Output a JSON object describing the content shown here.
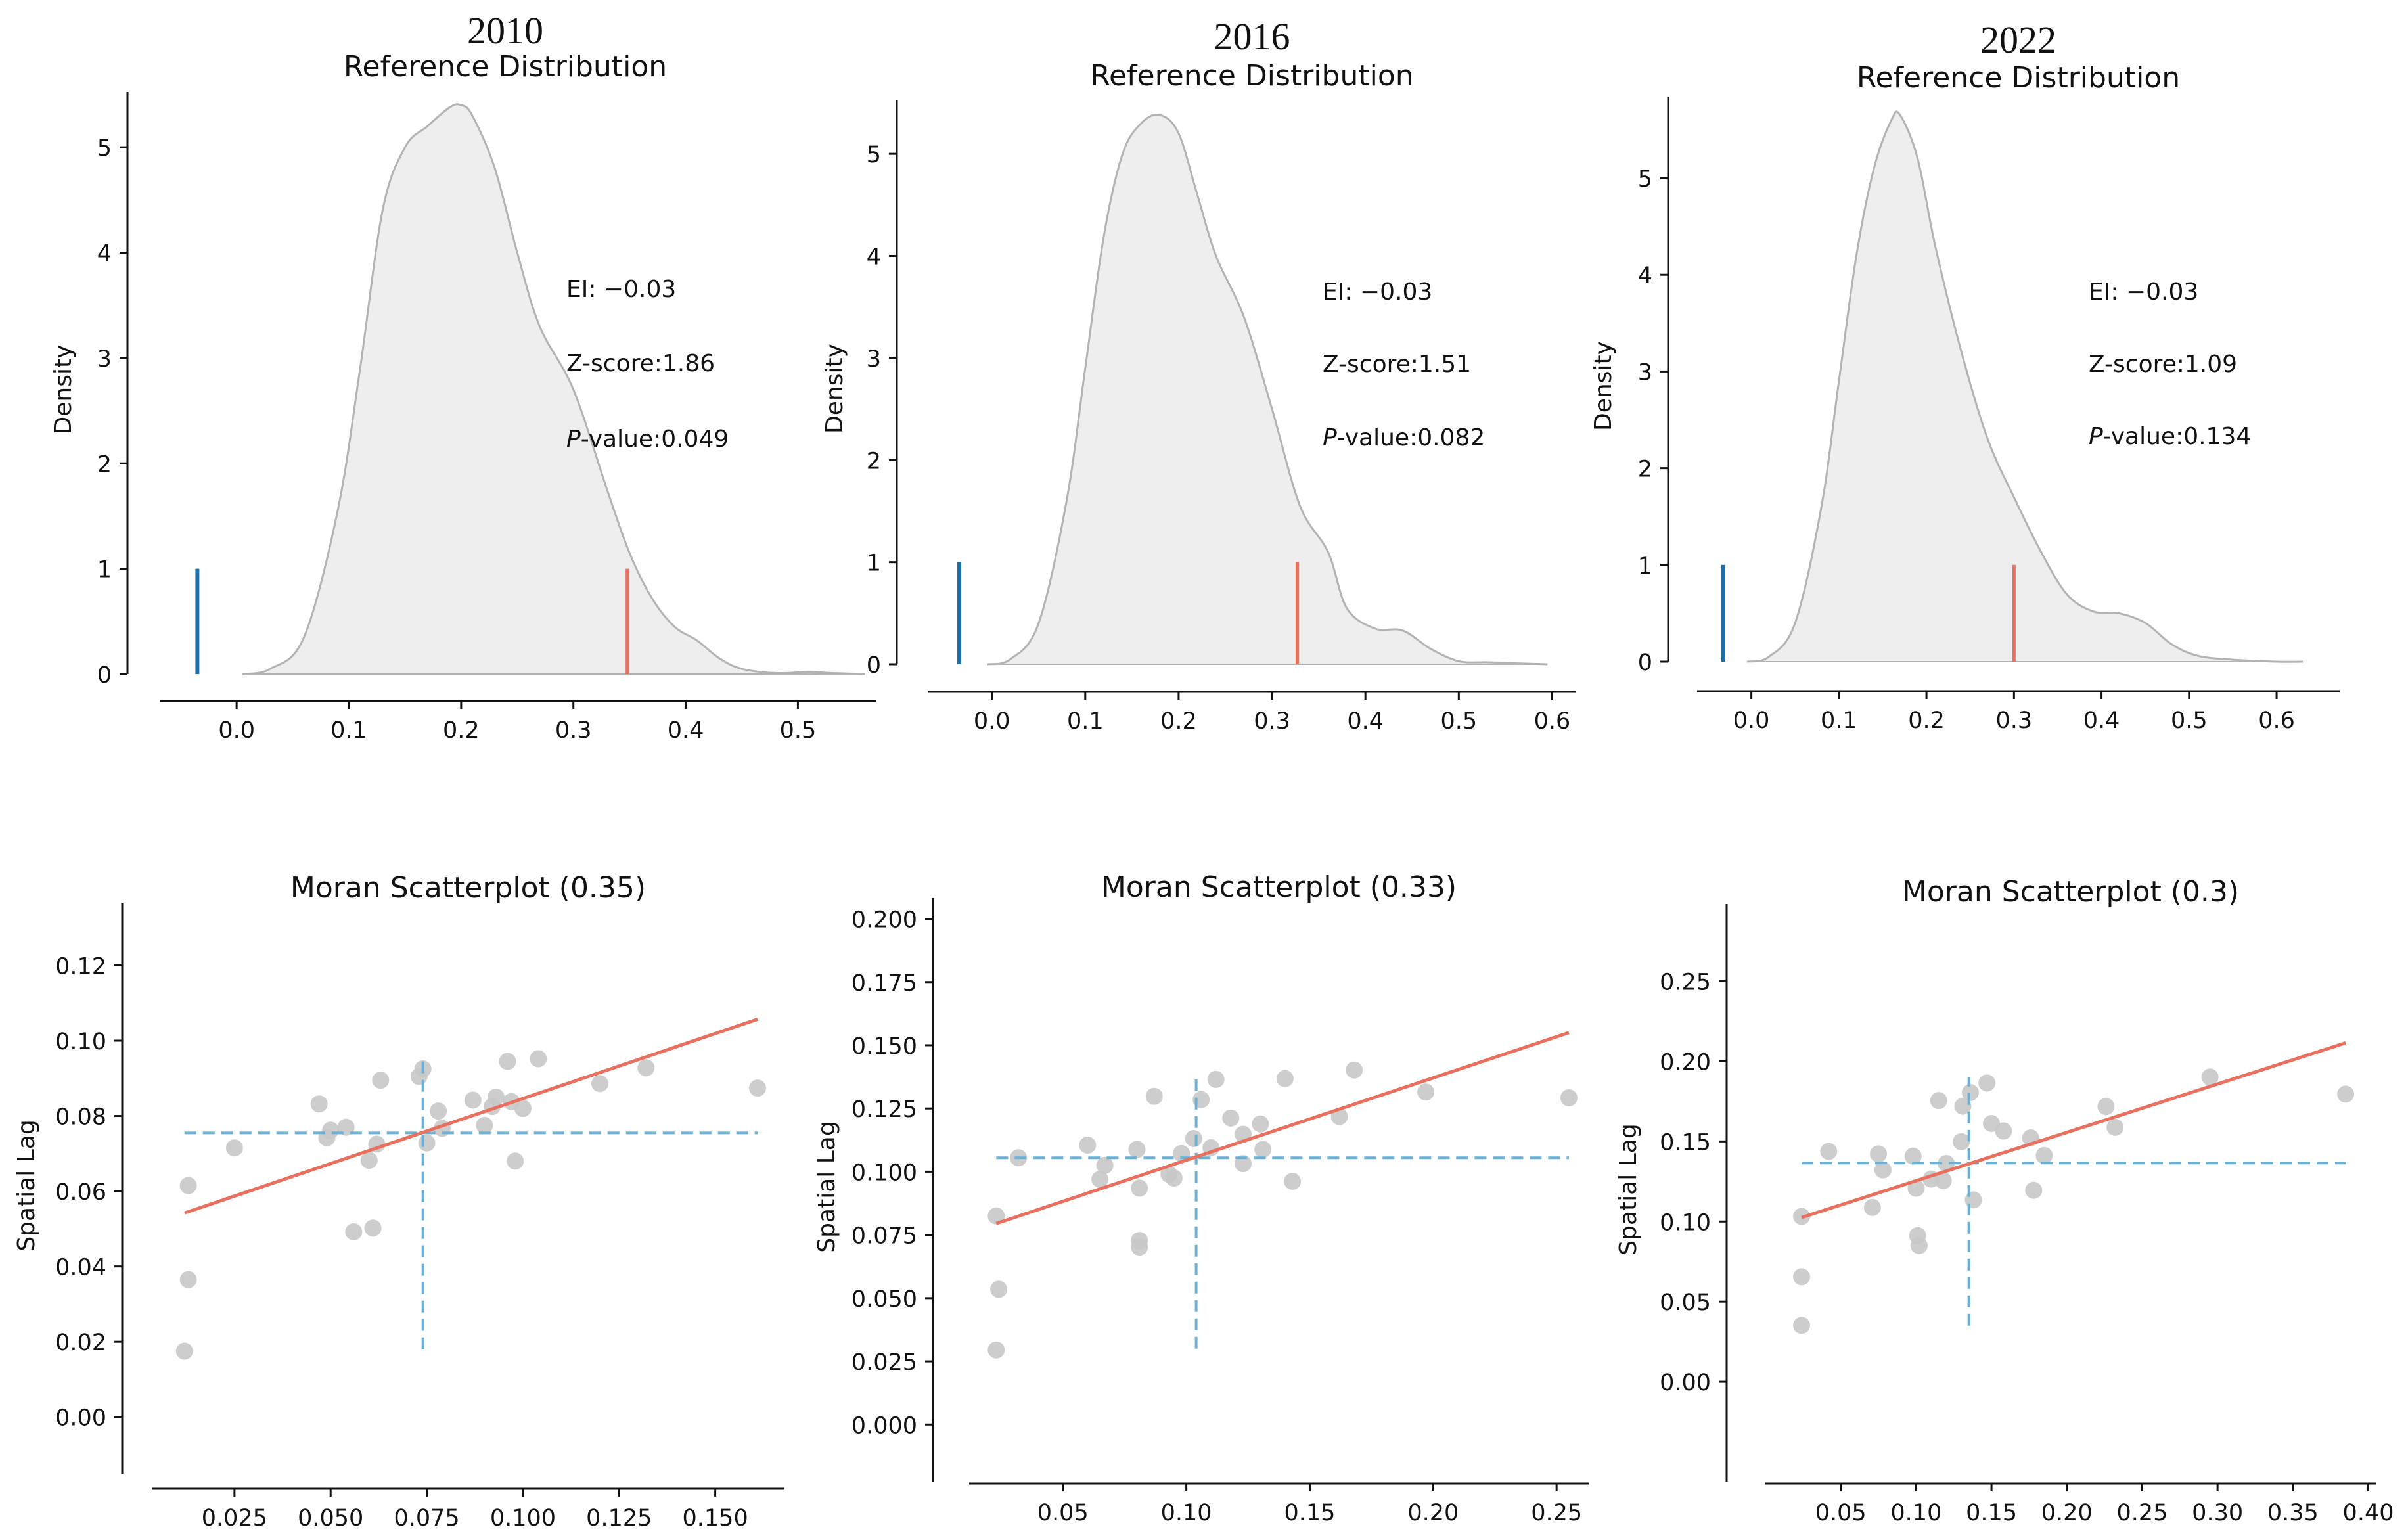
{
  "chart_data": [
    {
      "type": "area",
      "year_title": "2010",
      "title": "Reference Distribution",
      "xlabel": "",
      "ylabel": "Density",
      "xlim": [
        -0.068,
        0.57
      ],
      "ylim": [
        0,
        5.4
      ],
      "xticks": [
        0.0,
        0.1,
        0.2,
        0.3,
        0.4,
        0.5
      ],
      "xtick_labels": [
        "0.0",
        "0.1",
        "0.2",
        "0.3",
        "0.4",
        "0.5"
      ],
      "yticks": [
        0,
        1,
        2,
        3,
        4,
        5
      ],
      "ytick_labels": [
        "0",
        "1",
        "2",
        "3",
        "4",
        "5"
      ],
      "kde": {
        "x": [
          0.005,
          0.03,
          0.06,
          0.09,
          0.11,
          0.13,
          0.15,
          0.17,
          0.19,
          0.2,
          0.21,
          0.23,
          0.25,
          0.27,
          0.3,
          0.33,
          0.35,
          0.37,
          0.39,
          0.41,
          0.43,
          0.45,
          0.48,
          0.51,
          0.53,
          0.56
        ],
        "y": [
          0.0,
          0.05,
          0.35,
          1.55,
          2.9,
          4.4,
          5.0,
          5.2,
          5.38,
          5.4,
          5.3,
          4.8,
          4.0,
          3.3,
          2.7,
          1.75,
          1.15,
          0.72,
          0.45,
          0.32,
          0.15,
          0.05,
          0.01,
          0.02,
          0.01,
          0.0
        ]
      },
      "expected_index_line": {
        "x": -0.035,
        "height": 1.0
      },
      "observed_line": {
        "x": 0.348,
        "height": 1.0
      },
      "annotations": {
        "ei": "EI: −0.03",
        "zscore": "Z-score:1.86",
        "pvalue_prefix": "P",
        "pvalue": "-value:0.049"
      }
    },
    {
      "type": "area",
      "year_title": "2016",
      "title": "Reference Distribution",
      "xlabel": "",
      "ylabel": "Density",
      "xlim": [
        -0.068,
        0.625
      ],
      "ylim": [
        0,
        5.4
      ],
      "xticks": [
        0.0,
        0.1,
        0.2,
        0.3,
        0.4,
        0.5,
        0.6
      ],
      "xtick_labels": [
        "0.0",
        "0.1",
        "0.2",
        "0.3",
        "0.4",
        "0.5",
        "0.6"
      ],
      "yticks": [
        0,
        1,
        2,
        3,
        4,
        5
      ],
      "ytick_labels": [
        "0",
        "1",
        "2",
        "3",
        "4",
        "5"
      ],
      "kde": {
        "x": [
          -0.005,
          0.02,
          0.05,
          0.08,
          0.1,
          0.12,
          0.14,
          0.16,
          0.18,
          0.2,
          0.22,
          0.24,
          0.27,
          0.3,
          0.33,
          0.36,
          0.38,
          0.41,
          0.44,
          0.47,
          0.5,
          0.53,
          0.56,
          0.595
        ],
        "y": [
          0.0,
          0.05,
          0.4,
          1.6,
          2.9,
          4.2,
          5.0,
          5.3,
          5.38,
          5.2,
          4.6,
          4.0,
          3.4,
          2.5,
          1.55,
          1.1,
          0.55,
          0.35,
          0.33,
          0.15,
          0.03,
          0.02,
          0.01,
          0.0
        ]
      },
      "expected_index_line": {
        "x": -0.035,
        "height": 1.0
      },
      "observed_line": {
        "x": 0.327,
        "height": 1.0
      },
      "annotations": {
        "ei": "EI: −0.03",
        "zscore": "Z-score:1.51",
        "pvalue_prefix": "P",
        "pvalue": "-value:0.082"
      }
    },
    {
      "type": "area",
      "year_title": "2022",
      "title": "Reference Distribution",
      "xlabel": "",
      "ylabel": "Density",
      "xlim": [
        -0.062,
        0.672
      ],
      "ylim": [
        0,
        5.7
      ],
      "xticks": [
        0.0,
        0.1,
        0.2,
        0.3,
        0.4,
        0.5,
        0.6
      ],
      "xtick_labels": [
        "0.0",
        "0.1",
        "0.2",
        "0.3",
        "0.4",
        "0.5",
        "0.6"
      ],
      "yticks": [
        0,
        1,
        2,
        3,
        4,
        5
      ],
      "ytick_labels": [
        "0",
        "1",
        "2",
        "3",
        "4",
        "5"
      ],
      "kde": {
        "x": [
          -0.005,
          0.02,
          0.05,
          0.08,
          0.1,
          0.12,
          0.14,
          0.16,
          0.17,
          0.19,
          0.21,
          0.24,
          0.27,
          0.3,
          0.33,
          0.36,
          0.39,
          0.42,
          0.45,
          0.48,
          0.51,
          0.55,
          0.6,
          0.63
        ],
        "y": [
          0.0,
          0.05,
          0.4,
          1.6,
          2.9,
          4.2,
          5.1,
          5.6,
          5.65,
          5.2,
          4.3,
          3.2,
          2.3,
          1.7,
          1.15,
          0.7,
          0.52,
          0.5,
          0.4,
          0.18,
          0.06,
          0.02,
          0.0,
          0.0
        ]
      },
      "expected_index_line": {
        "x": -0.032,
        "height": 1.0
      },
      "observed_line": {
        "x": 0.3,
        "height": 1.0
      },
      "annotations": {
        "ei": "EI: −0.03",
        "zscore": "Z-score:1.09",
        "pvalue_prefix": "P",
        "pvalue": "-value:0.134"
      }
    },
    {
      "type": "scatter",
      "title": "Moran Scatterplot (0.35)",
      "xlabel": "",
      "ylabel": "Spatial Lag",
      "xlim": [
        0.0035,
        0.168
      ],
      "ylim": [
        -0.01,
        0.133
      ],
      "xticks": [
        0.025,
        0.05,
        0.075,
        0.1,
        0.125,
        0.15
      ],
      "xtick_labels": [
        "0.025",
        "0.050",
        "0.075",
        "0.100",
        "0.125",
        "0.150"
      ],
      "yticks": [
        0.0,
        0.02,
        0.04,
        0.06,
        0.08,
        0.1,
        0.12
      ],
      "ytick_labels": [
        "0.00",
        "0.02",
        "0.04",
        "0.06",
        "0.08",
        "0.10",
        "0.12"
      ],
      "points": [
        [
          0.012,
          0.0175
        ],
        [
          0.013,
          0.0365
        ],
        [
          0.013,
          0.0615
        ],
        [
          0.025,
          0.0715
        ],
        [
          0.047,
          0.0832
        ],
        [
          0.049,
          0.0742
        ],
        [
          0.05,
          0.0762
        ],
        [
          0.054,
          0.077
        ],
        [
          0.056,
          0.0492
        ],
        [
          0.06,
          0.0682
        ],
        [
          0.061,
          0.0502
        ],
        [
          0.062,
          0.0725
        ],
        [
          0.063,
          0.0895
        ],
        [
          0.073,
          0.0905
        ],
        [
          0.074,
          0.0925
        ],
        [
          0.075,
          0.0728
        ],
        [
          0.078,
          0.0813
        ],
        [
          0.079,
          0.0767
        ],
        [
          0.087,
          0.0842
        ],
        [
          0.09,
          0.0775
        ],
        [
          0.092,
          0.0825
        ],
        [
          0.093,
          0.085
        ],
        [
          0.096,
          0.0945
        ],
        [
          0.097,
          0.0838
        ],
        [
          0.098,
          0.068
        ],
        [
          0.1,
          0.082
        ],
        [
          0.104,
          0.0952
        ],
        [
          0.12,
          0.0886
        ],
        [
          0.132,
          0.0928
        ],
        [
          0.161,
          0.0874
        ]
      ],
      "fit_line": {
        "x": [
          0.012,
          0.161
        ],
        "y": [
          0.0542,
          0.1057
        ]
      },
      "mean_x": 0.074,
      "mean_y": 0.0755,
      "mean_x_span": [
        0.018,
        0.095
      ],
      "mean_y_span": [
        0.012,
        0.161
      ]
    },
    {
      "type": "scatter",
      "title": "Moran Scatterplot (0.33)",
      "xlabel": "",
      "ylabel": "Spatial Lag",
      "xlim": [
        0.012,
        0.263
      ],
      "ylim": [
        -0.015,
        0.203
      ],
      "xticks": [
        0.05,
        0.1,
        0.15,
        0.2,
        0.25
      ],
      "xtick_labels": [
        "0.05",
        "0.10",
        "0.15",
        "0.20",
        "0.25"
      ],
      "yticks": [
        0.0,
        0.025,
        0.05,
        0.075,
        0.1,
        0.125,
        0.15,
        0.175,
        0.2
      ],
      "ytick_labels": [
        "0.000",
        "0.025",
        "0.050",
        "0.075",
        "0.100",
        "0.125",
        "0.150",
        "0.175",
        "0.200"
      ],
      "points": [
        [
          0.023,
          0.0295
        ],
        [
          0.024,
          0.0535
        ],
        [
          0.023,
          0.0825
        ],
        [
          0.032,
          0.1055
        ],
        [
          0.06,
          0.1105
        ],
        [
          0.065,
          0.097
        ],
        [
          0.067,
          0.1025
        ],
        [
          0.08,
          0.1088
        ],
        [
          0.081,
          0.0935
        ],
        [
          0.081,
          0.0728
        ],
        [
          0.081,
          0.0702
        ],
        [
          0.087,
          0.1298
        ],
        [
          0.093,
          0.099
        ],
        [
          0.095,
          0.0975
        ],
        [
          0.098,
          0.1072
        ],
        [
          0.103,
          0.1131
        ],
        [
          0.106,
          0.1285
        ],
        [
          0.11,
          0.1095
        ],
        [
          0.112,
          0.1365
        ],
        [
          0.118,
          0.1212
        ],
        [
          0.123,
          0.1148
        ],
        [
          0.123,
          0.1032
        ],
        [
          0.13,
          0.1189
        ],
        [
          0.131,
          0.1088
        ],
        [
          0.14,
          0.1368
        ],
        [
          0.143,
          0.0962
        ],
        [
          0.162,
          0.1218
        ],
        [
          0.168,
          0.1402
        ],
        [
          0.197,
          0.1315
        ],
        [
          0.255,
          0.1292
        ]
      ],
      "fit_line": {
        "x": [
          0.023,
          0.255
        ],
        "y": [
          0.0795,
          0.155
        ]
      },
      "mean_x": 0.104,
      "mean_y": 0.1055,
      "mean_x_span": [
        0.03,
        0.139
      ],
      "mean_y_span": [
        0.023,
        0.255
      ]
    },
    {
      "type": "scatter",
      "title": "Moran Scatterplot (0.3)",
      "xlabel": "",
      "ylabel": "Spatial Lag",
      "xlim": [
        0.0,
        0.405
      ],
      "ylim": [
        -0.05,
        0.29
      ],
      "xticks": [
        0.05,
        0.1,
        0.15,
        0.2,
        0.25,
        0.3,
        0.35,
        0.4
      ],
      "xtick_labels": [
        "0.05",
        "0.10",
        "0.15",
        "0.20",
        "0.25",
        "0.30",
        "0.35",
        "0.40"
      ],
      "yticks": [
        0.0,
        0.05,
        0.1,
        0.15,
        0.2,
        0.25
      ],
      "ytick_labels": [
        "0.00",
        "0.05",
        "0.10",
        "0.15",
        "0.20",
        "0.25"
      ],
      "points": [
        [
          0.024,
          0.0352
        ],
        [
          0.024,
          0.0655
        ],
        [
          0.024,
          0.1032
        ],
        [
          0.042,
          0.1438
        ],
        [
          0.071,
          0.1088
        ],
        [
          0.075,
          0.1422
        ],
        [
          0.078,
          0.1322
        ],
        [
          0.098,
          0.1408
        ],
        [
          0.1,
          0.1208
        ],
        [
          0.101,
          0.0912
        ],
        [
          0.102,
          0.085
        ],
        [
          0.11,
          0.1265
        ],
        [
          0.115,
          0.1755
        ],
        [
          0.118,
          0.1255
        ],
        [
          0.12,
          0.1362
        ],
        [
          0.13,
          0.1498
        ],
        [
          0.131,
          0.172
        ],
        [
          0.136,
          0.1805
        ],
        [
          0.138,
          0.1135
        ],
        [
          0.147,
          0.1865
        ],
        [
          0.15,
          0.1612
        ],
        [
          0.158,
          0.1565
        ],
        [
          0.176,
          0.1522
        ],
        [
          0.178,
          0.1195
        ],
        [
          0.185,
          0.1412
        ],
        [
          0.226,
          0.1718
        ],
        [
          0.232,
          0.1588
        ],
        [
          0.295,
          0.1902
        ],
        [
          0.385,
          0.1795
        ]
      ],
      "fit_line": {
        "x": [
          0.024,
          0.385
        ],
        "y": [
          0.1025,
          0.2115
        ]
      },
      "mean_x": 0.135,
      "mean_y": 0.1365,
      "mean_x_span": [
        0.035,
        0.19
      ],
      "mean_y_span": [
        0.024,
        0.385
      ]
    }
  ],
  "colors": {
    "kde_fill": "#eeeeee",
    "kde_line": "#b3b3b3",
    "expected_line": "#1f6fa6",
    "observed_line": "#e8705e",
    "scatter_point": "#c8c8c8",
    "fit_line": "#e8705e",
    "mean_line": "#6ab0d4",
    "axis": "#111111"
  }
}
